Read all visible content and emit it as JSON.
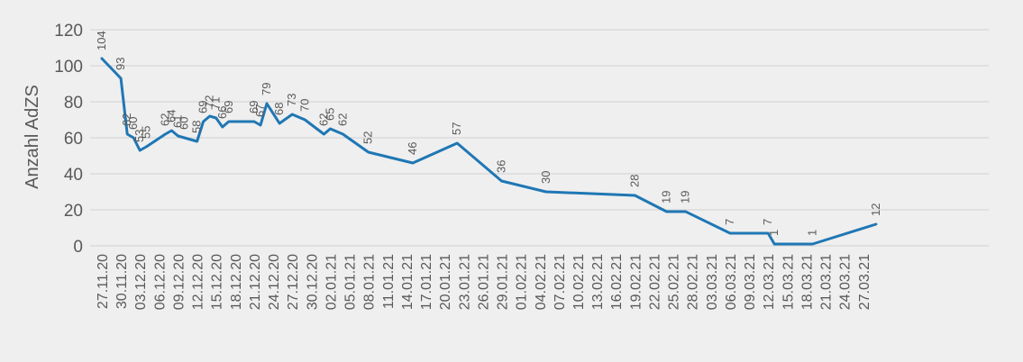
{
  "chart_data": {
    "type": "line",
    "ylabel": "Anzahl AdZS",
    "ylim": [
      0,
      120
    ],
    "yticks": [
      0,
      20,
      40,
      60,
      80,
      100,
      120
    ],
    "grid": true,
    "line_color": "#1f77b4",
    "x_tick_labels": [
      "27.11.20",
      "30.11.20",
      "03.12.20",
      "06.12.20",
      "09.12.20",
      "12.12.20",
      "15.12.20",
      "18.12.20",
      "21.12.20",
      "24.12.20",
      "27.12.20",
      "30.12.20",
      "02.01.21",
      "05.01.21",
      "08.01.21",
      "11.01.21",
      "14.01.21",
      "17.01.21",
      "20.01.21",
      "23.01.21",
      "26.01.21",
      "29.01.21",
      "01.02.21",
      "04.02.21",
      "07.02.21",
      "10.02.21",
      "13.02.21",
      "16.02.21",
      "19.02.21",
      "22.02.21",
      "25.02.21",
      "28.02.21",
      "03.03.21",
      "06.03.21",
      "09.03.21",
      "12.03.21",
      "15.03.21",
      "18.03.21",
      "21.03.21",
      "24.03.21",
      "27.03.21"
    ],
    "x_start": "2020-11-27",
    "series": [
      {
        "points": [
          {
            "x": "2020-11-27",
            "y": 104,
            "label": "104"
          },
          {
            "x": "2020-11-30",
            "y": 93,
            "label": "93"
          },
          {
            "x": "2020-12-01",
            "y": 62,
            "label": "62"
          },
          {
            "x": "2020-12-02",
            "y": 60,
            "label": "60"
          },
          {
            "x": "2020-12-03",
            "y": 53,
            "label": "53"
          },
          {
            "x": "2020-12-04",
            "y": 55,
            "label": "55"
          },
          {
            "x": "2020-12-07",
            "y": 62,
            "label": "62"
          },
          {
            "x": "2020-12-08",
            "y": 64,
            "label": "64"
          },
          {
            "x": "2020-12-09",
            "y": 61,
            "label": "61"
          },
          {
            "x": "2020-12-10",
            "y": 60,
            "label": "60"
          },
          {
            "x": "2020-12-12",
            "y": 58,
            "label": "58"
          },
          {
            "x": "2020-12-13",
            "y": 69,
            "label": "69"
          },
          {
            "x": "2020-12-14",
            "y": 72,
            "label": "72"
          },
          {
            "x": "2020-12-15",
            "y": 71,
            "label": "71"
          },
          {
            "x": "2020-12-16",
            "y": 66,
            "label": "66"
          },
          {
            "x": "2020-12-17",
            "y": 69,
            "label": "69"
          },
          {
            "x": "2020-12-21",
            "y": 69,
            "label": "69"
          },
          {
            "x": "2020-12-22",
            "y": 67,
            "label": "67"
          },
          {
            "x": "2020-12-23",
            "y": 79,
            "label": "79"
          },
          {
            "x": "2020-12-25",
            "y": 68,
            "label": "68"
          },
          {
            "x": "2020-12-27",
            "y": 73,
            "label": "73"
          },
          {
            "x": "2020-12-29",
            "y": 70,
            "label": "70"
          },
          {
            "x": "2021-01-01",
            "y": 62,
            "label": "62"
          },
          {
            "x": "2021-01-02",
            "y": 65,
            "label": "65"
          },
          {
            "x": "2021-01-04",
            "y": 62,
            "label": "62"
          },
          {
            "x": "2021-01-08",
            "y": 52,
            "label": "52"
          },
          {
            "x": "2021-01-15",
            "y": 46,
            "label": "46"
          },
          {
            "x": "2021-01-22",
            "y": 57,
            "label": "57"
          },
          {
            "x": "2021-01-29",
            "y": 36,
            "label": "36"
          },
          {
            "x": "2021-02-05",
            "y": 30,
            "label": "30"
          },
          {
            "x": "2021-02-19",
            "y": 28,
            "label": "28"
          },
          {
            "x": "2021-02-24",
            "y": 19,
            "label": "19"
          },
          {
            "x": "2021-02-27",
            "y": 19,
            "label": "19"
          },
          {
            "x": "2021-03-06",
            "y": 7,
            "label": "7"
          },
          {
            "x": "2021-03-12",
            "y": 7,
            "label": "7"
          },
          {
            "x": "2021-03-13",
            "y": 1,
            "label": "1"
          },
          {
            "x": "2021-03-19",
            "y": 1,
            "label": "1"
          },
          {
            "x": "2021-03-29",
            "y": 12,
            "label": "12"
          }
        ]
      }
    ]
  }
}
